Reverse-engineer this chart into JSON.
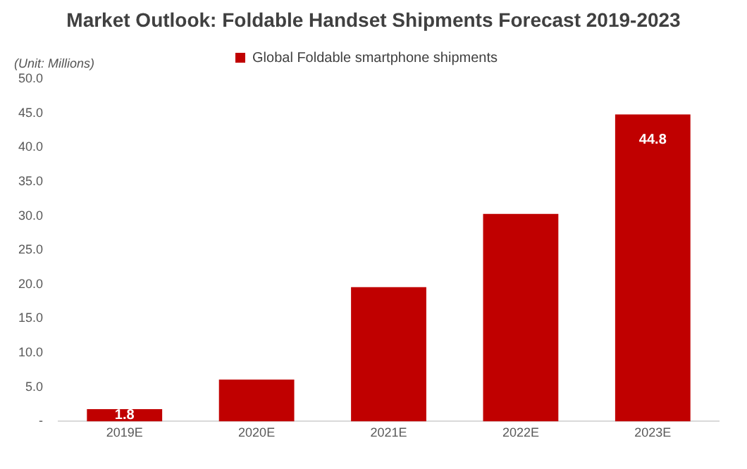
{
  "chart_data": {
    "type": "bar",
    "title": "Market Outlook: Foldable Handset Shipments Forecast 2019-2023",
    "ylabel": "(Unit: Millions)",
    "categories": [
      "2019E",
      "2020E",
      "2021E",
      "2022E",
      "2023E"
    ],
    "series": [
      {
        "name": "Global Foldable smartphone shipments",
        "color": "#c00000",
        "values": [
          1.8,
          6.1,
          19.6,
          30.3,
          44.8
        ],
        "value_labels": [
          "1.8",
          null,
          null,
          null,
          "44.8"
        ]
      }
    ],
    "ylim": [
      0,
      50
    ],
    "yticks": [
      {
        "value": 0,
        "label": "-"
      },
      {
        "value": 5,
        "label": "5.0"
      },
      {
        "value": 10,
        "label": "10.0"
      },
      {
        "value": 15,
        "label": "15.0"
      },
      {
        "value": 20,
        "label": "20.0"
      },
      {
        "value": 25,
        "label": "25.0"
      },
      {
        "value": 30,
        "label": "30.0"
      },
      {
        "value": 35,
        "label": "35.0"
      },
      {
        "value": 40,
        "label": "40.0"
      },
      {
        "value": 45,
        "label": "45.0"
      },
      {
        "value": 50,
        "label": "50.0"
      }
    ],
    "legend": "top"
  }
}
